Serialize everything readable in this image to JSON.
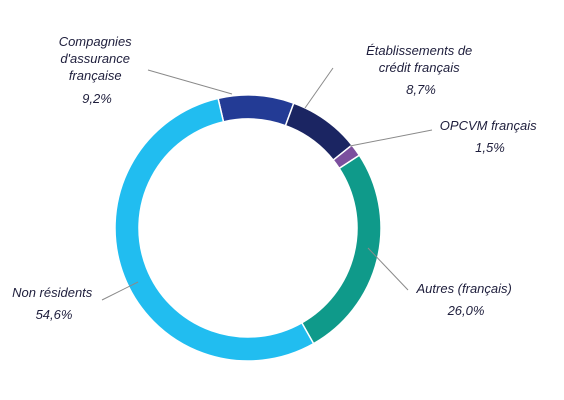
{
  "chart_data": {
    "type": "pie",
    "variant": "donut",
    "start_angle_deg": -13,
    "direction": "clockwise",
    "legend": "none",
    "slices": [
      {
        "label_lines": [
          "Compagnies",
          "d'assurance",
          "française"
        ],
        "value_text": "9,2%",
        "value": 9.2,
        "color": "#233b95"
      },
      {
        "label_lines": [
          "Établissements de",
          "crédit français"
        ],
        "value_text": "8,7%",
        "value": 8.7,
        "color": "#1b2562"
      },
      {
        "label_lines": [
          "OPCVM français"
        ],
        "value_text": "1,5%",
        "value": 1.5,
        "color": "#7b4f9e"
      },
      {
        "label_lines": [
          "Autres (français)"
        ],
        "value_text": "26,0%",
        "value": 26.0,
        "color": "#0f9a8a"
      },
      {
        "label_lines": [
          "Non résidents"
        ],
        "value_text": "54,6%",
        "value": 54.6,
        "color": "#21bdf0"
      }
    ]
  }
}
